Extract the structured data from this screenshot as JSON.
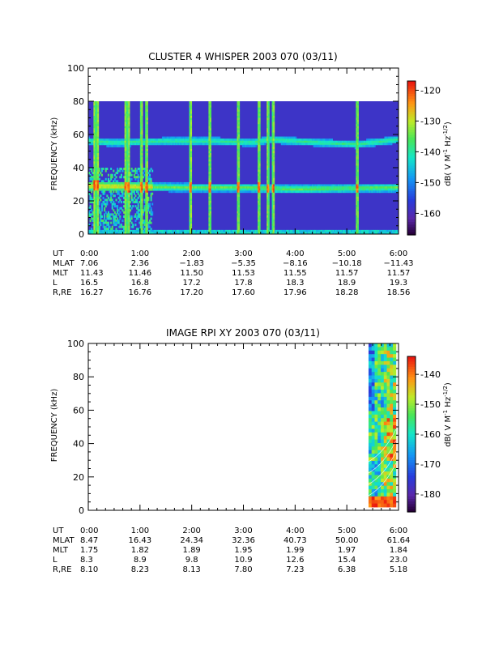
{
  "chart_data": [
    {
      "type": "heatmap",
      "title": "CLUSTER 4 WHISPER 2003 070 (03/11)",
      "ylabel": "FREQUENCY (kHz)",
      "ylim": [
        0,
        100
      ],
      "y_ticks": [
        "0",
        "20",
        "40",
        "60",
        "80",
        "100"
      ],
      "x_ticks": [
        "0:00",
        "1:00",
        "2:00",
        "3:00",
        "4:00",
        "5:00",
        "6:00"
      ],
      "xlim_hours": [
        0,
        6
      ],
      "data_extent": {
        "freq_max_khz": 80
      },
      "colorbar": {
        "label": "dB( V M⁻¹ Hz⁻¹ᐟ²)",
        "label_parts": [
          "dB( V M",
          "-1",
          " Hz",
          "-1/2",
          ")"
        ],
        "ticks": [
          "-120",
          "-130",
          "-140",
          "-150",
          "-160"
        ],
        "tick_values": [
          -120,
          -130,
          -140,
          -150,
          -160
        ],
        "range": [
          -167,
          -117
        ]
      },
      "features": {
        "band_upper_khz": [
          [
            0,
            56
          ],
          [
            0.5,
            55
          ],
          [
            1.5,
            56
          ],
          [
            2.5,
            56
          ],
          [
            3.2,
            55
          ],
          [
            3.5,
            57
          ],
          [
            4.5,
            55
          ],
          [
            5.2,
            54
          ],
          [
            6.0,
            57
          ]
        ],
        "band_lower_khz": [
          [
            0,
            29
          ],
          [
            1.0,
            28.5
          ],
          [
            2.0,
            28
          ],
          [
            3.0,
            28
          ],
          [
            4.0,
            27
          ],
          [
            5.0,
            27.5
          ],
          [
            6.0,
            28
          ]
        ],
        "bursts_hours": [
          0.12,
          0.18,
          0.72,
          0.78,
          1.03,
          1.13,
          1.98,
          2.35,
          2.9,
          3.3,
          3.47,
          3.58,
          5.2
        ]
      },
      "ephemeris": {
        "labels": [
          "UT",
          "MLAT",
          "MLT",
          "L",
          "R,RE"
        ],
        "rows": [
          [
            "0:00",
            "1:00",
            "2:00",
            "3:00",
            "4:00",
            "5:00",
            "6:00"
          ],
          [
            "7.06",
            "2.36",
            "−1.83",
            "−5.35",
            "−8.16",
            "−10.18",
            "−11.43"
          ],
          [
            "11.43",
            "11.46",
            "11.50",
            "11.53",
            "11.55",
            "11.57",
            "11.57"
          ],
          [
            "16.5",
            "16.8",
            "17.2",
            "17.8",
            "18.3",
            "18.9",
            "19.3"
          ],
          [
            "16.27",
            "16.76",
            "17.20",
            "17.60",
            "17.96",
            "18.28",
            "18.56"
          ]
        ]
      }
    },
    {
      "type": "heatmap",
      "title": "IMAGE RPI XY 2003 070 (03/11)",
      "ylabel": "FREQUENCY (kHz)",
      "ylim": [
        0,
        100
      ],
      "y_ticks": [
        "0",
        "20",
        "40",
        "60",
        "80",
        "100"
      ],
      "x_ticks": [
        "0:00",
        "1:00",
        "2:00",
        "3:00",
        "4:00",
        "5:00",
        "6:00"
      ],
      "xlim_hours": [
        0,
        6
      ],
      "data_extent": {
        "start_hours": 5.42,
        "end_hours": 5.95
      },
      "colorbar": {
        "label": "dB( V M⁻¹ Hz⁻¹ᐟ²)",
        "label_parts": [
          "dB( V M",
          "-1",
          " Hz",
          "-1/2",
          ")"
        ],
        "ticks": [
          "-140",
          "-150",
          "-160",
          "-170",
          "-180"
        ],
        "tick_values": [
          -140,
          -150,
          -160,
          -170,
          -180
        ],
        "range": [
          -186,
          -134
        ]
      },
      "ephemeris": {
        "labels": [
          "UT",
          "MLAT",
          "MLT",
          "L",
          "R,RE"
        ],
        "rows": [
          [
            "0:00",
            "1:00",
            "2:00",
            "3:00",
            "4:00",
            "5:00",
            "6:00"
          ],
          [
            "8.47",
            "16.43",
            "24.34",
            "32.36",
            "40.73",
            "50.00",
            "61.64"
          ],
          [
            "1.75",
            "1.82",
            "1.89",
            "1.95",
            "1.99",
            "1.97",
            "1.84"
          ],
          [
            "8.3",
            "8.9",
            "9.8",
            "10.9",
            "12.6",
            "15.4",
            "23.0"
          ],
          [
            "8.10",
            "8.23",
            "8.13",
            "7.80",
            "7.23",
            "6.38",
            "5.18"
          ]
        ]
      }
    }
  ]
}
